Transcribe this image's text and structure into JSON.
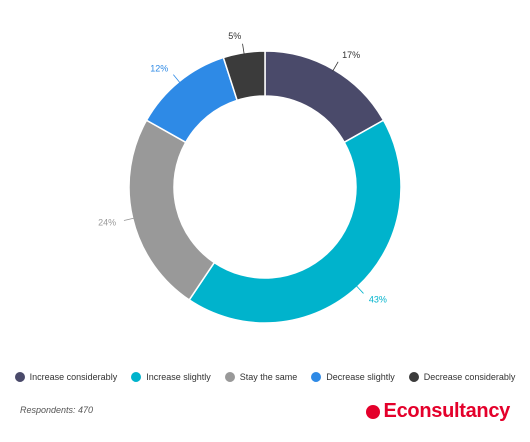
{
  "chart_data": {
    "type": "pie",
    "title": "",
    "categories": [
      "Increase considerably",
      "Increase slightly",
      "Stay the same",
      "Decrease slightly",
      "Decrease considerably"
    ],
    "values": [
      17,
      43,
      24,
      12,
      5
    ],
    "labels": [
      "17%",
      "43%",
      "24%",
      "12%",
      "5%"
    ],
    "colors": [
      "#4a4a6a",
      "#00b3cc",
      "#999999",
      "#2e8ae6",
      "#3b3b3b"
    ],
    "label_colors": [
      "#333333",
      "#00b3cc",
      "#999999",
      "#2e8ae6",
      "#333333"
    ],
    "donut": true,
    "legend_position": "bottom"
  },
  "legend": {
    "items": [
      {
        "label": "Increase considerably",
        "color": "#4a4a6a"
      },
      {
        "label": "Increase slightly",
        "color": "#00b3cc"
      },
      {
        "label": "Stay the same",
        "color": "#999999"
      },
      {
        "label": "Decrease slightly",
        "color": "#2e8ae6"
      },
      {
        "label": "Decrease considerably",
        "color": "#3b3b3b"
      }
    ]
  },
  "footer": {
    "respondents": "Respondents: 470",
    "brand": "Econsultancy",
    "brand_color": "#e4002b"
  }
}
